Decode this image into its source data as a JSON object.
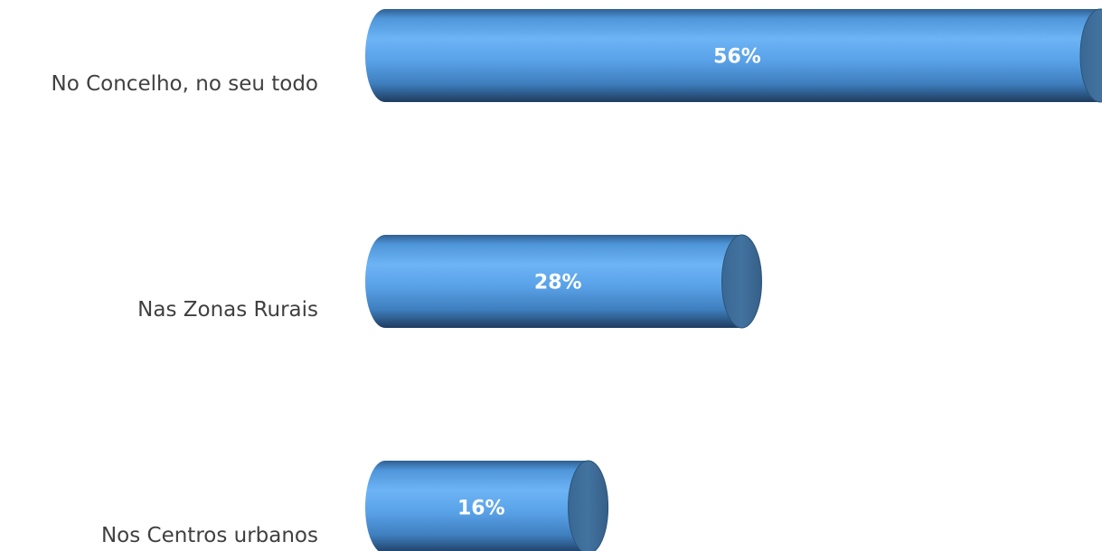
{
  "chart_data": {
    "type": "bar",
    "orientation": "horizontal",
    "style": "3d-cylinder",
    "categories": [
      "No Concelho, no seu todo",
      "Nas Zonas Rurais",
      "Nos Centros urbanos"
    ],
    "values": [
      56,
      28,
      16
    ],
    "value_labels": [
      "56%",
      "28%",
      "16%"
    ],
    "unit": "%",
    "xlim": [
      0,
      56
    ],
    "grid": false,
    "legend": "none",
    "colors": {
      "body_light": "#6cb4f5",
      "body_mid": "#4b90d6",
      "body_dark": "#1e3c5f",
      "cap": "#3e6e9c",
      "cap_edge": "#2c5478",
      "label_text": "#404040",
      "value_text": "#ffffff"
    }
  }
}
